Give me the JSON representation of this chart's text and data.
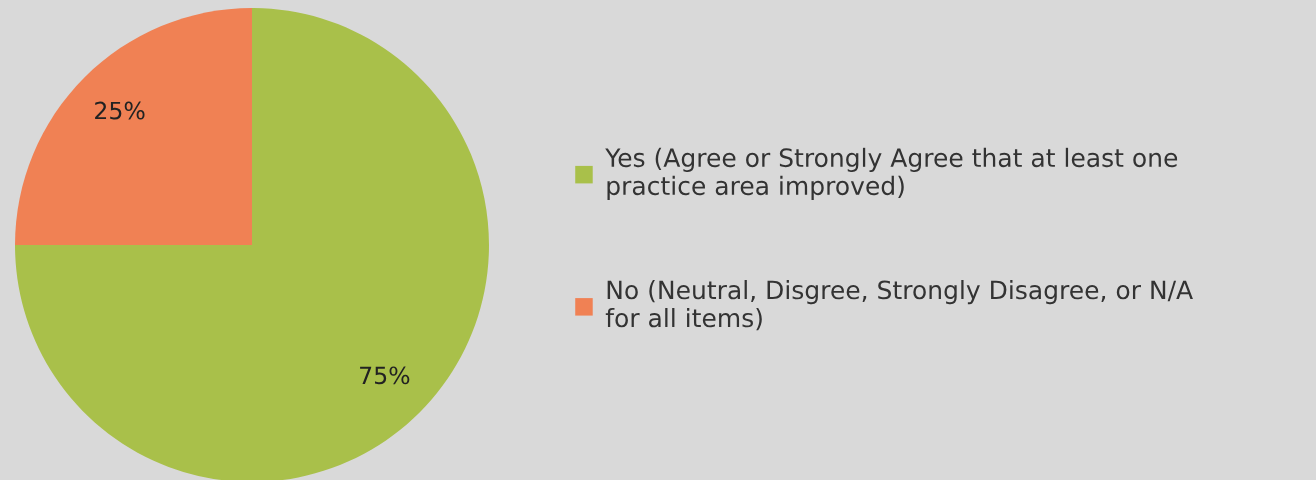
{
  "chart_data": {
    "type": "pie",
    "categories": [
      "Yes (Agree or Strongly Agree that at least one practice area improved)",
      "No (Neutral, Disgree, Strongly Disagree, or N/A for all items)"
    ],
    "values": [
      75,
      25
    ],
    "value_labels": [
      "75%",
      "25%"
    ],
    "colors": [
      "#a9c04a",
      "#f08154"
    ],
    "legend": "right"
  }
}
